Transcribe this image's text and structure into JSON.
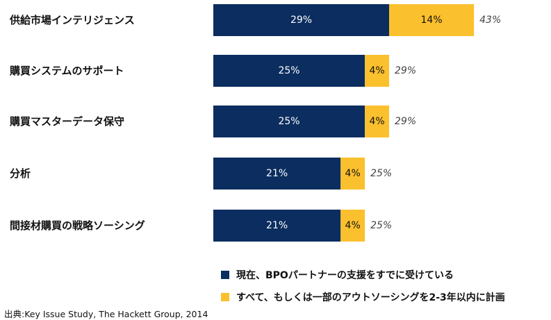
{
  "chart_data": {
    "type": "bar",
    "orientation": "horizontal",
    "stacked": true,
    "categories": [
      "供給市場インテリジェンス",
      "購買システムのサポート",
      "購買マスターデータ保守",
      "分析",
      "間接材購買の戦略ソーシング"
    ],
    "series": [
      {
        "name": "現在、BPOパートナーの支援をすでに受けている",
        "color": "#0b2d5f",
        "values": [
          29,
          25,
          25,
          21,
          21
        ],
        "labels": [
          "29%",
          "25%",
          "25%",
          "21%",
          "21%"
        ]
      },
      {
        "name": "すべて、もしくは一部のアウトソーシングを2-3年以内に計画",
        "color": "#fbc02d",
        "values": [
          14,
          4,
          4,
          4,
          4
        ],
        "labels": [
          "14%",
          "4%",
          "4%",
          "4%",
          "4%"
        ]
      }
    ],
    "totals": [
      43,
      29,
      29,
      25,
      25
    ],
    "total_labels": [
      "43%",
      "29%",
      "29%",
      "25%",
      "25%"
    ],
    "legend_position": "bottom-right",
    "grid": false
  },
  "source_text": "出典:Key Issue Study, The Hackett Group, 2014"
}
